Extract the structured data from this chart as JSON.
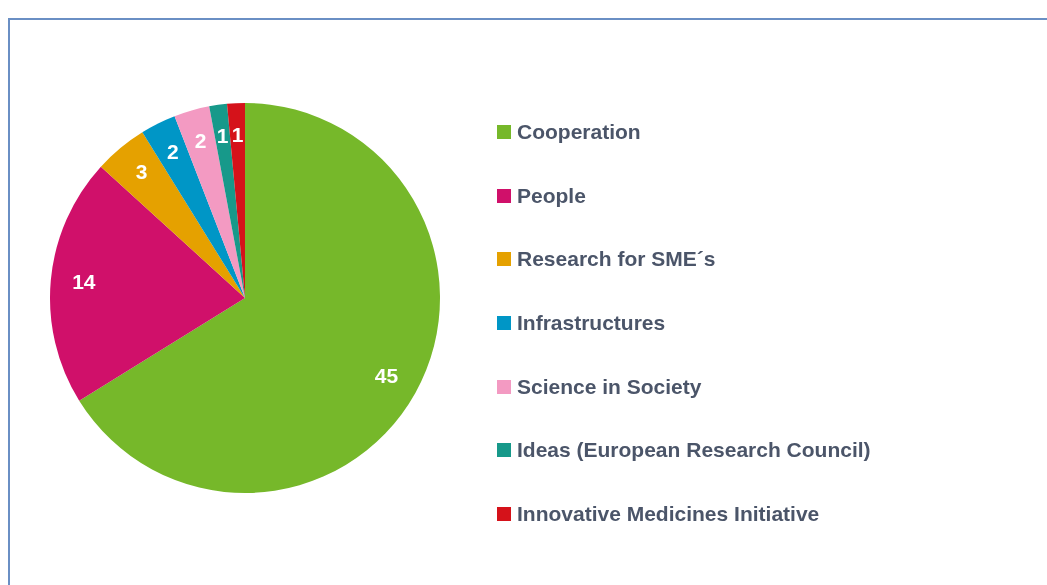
{
  "chart_data": {
    "type": "pie",
    "categories": [
      "Cooperation",
      "People",
      "Research for SME´s",
      "Infrastructures",
      "Science in Society",
      "Ideas (European Research Council)",
      "Innovative Medicines Initiative"
    ],
    "values": [
      45,
      14,
      3,
      2,
      2,
      1,
      1
    ],
    "colors": [
      "#76b82a",
      "#d0106a",
      "#e5a100",
      "#0096c6",
      "#f39ac2",
      "#17998a",
      "#d5121a"
    ],
    "data_labels": true,
    "legend": "right"
  }
}
